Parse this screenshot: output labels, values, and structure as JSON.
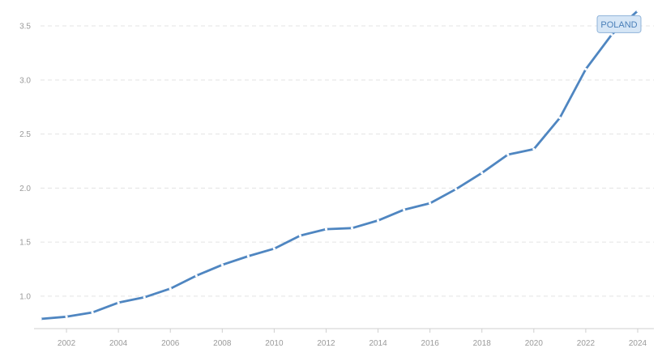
{
  "chart_data": {
    "type": "line",
    "title": "",
    "xlabel": "",
    "ylabel": "",
    "x": [
      2001,
      2002,
      2003,
      2004,
      2005,
      2006,
      2007,
      2008,
      2009,
      2010,
      2011,
      2012,
      2013,
      2014,
      2015,
      2016,
      2017,
      2018,
      2019,
      2020,
      2021,
      2022,
      2023,
      2024
    ],
    "series": [
      {
        "name": "POLAND",
        "color": "#4f86c1",
        "values": [
          0.79,
          0.81,
          0.85,
          0.94,
          0.99,
          1.07,
          1.19,
          1.29,
          1.37,
          1.44,
          1.56,
          1.62,
          1.63,
          1.7,
          1.8,
          1.86,
          1.99,
          2.14,
          2.31,
          2.36,
          2.65,
          3.1,
          3.42,
          3.64
        ]
      }
    ],
    "x_ticks": [
      "2002",
      "2004",
      "2006",
      "2008",
      "2010",
      "2012",
      "2014",
      "2016",
      "2018",
      "2020",
      "2022",
      "2024"
    ],
    "y_ticks": [
      "1.0",
      "1.5",
      "2.0",
      "2.5",
      "3.0",
      "3.5"
    ],
    "xlim": [
      2001,
      2024
    ],
    "ylim": [
      0.7,
      3.65
    ],
    "grid": "horizontal dashed",
    "legend": "inline label at end of series"
  }
}
